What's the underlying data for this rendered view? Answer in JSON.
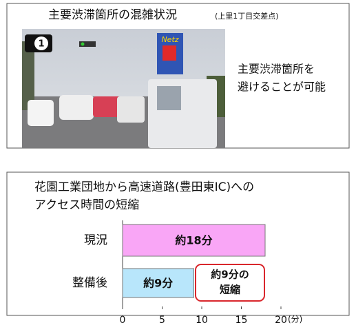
{
  "photo_panel": {
    "title": "主要渋滞箇所の混雑状況",
    "subtitle": "(上里1丁目交差点)",
    "badge": "1",
    "sign": "Netz",
    "note_lines": [
      "主要渋滞箇所を",
      "避けることが可能"
    ]
  },
  "chart_data": {
    "type": "bar",
    "orientation": "horizontal",
    "title_lines": [
      "花園工業団地から高速道路(豊田東IC)への",
      "アクセス時間の短縮"
    ],
    "categories": [
      "現況",
      "整備後"
    ],
    "values": [
      18,
      9
    ],
    "value_labels": [
      "約18分",
      "約9分"
    ],
    "colors": [
      "#f9a6f6",
      "#b8e6fb"
    ],
    "xlim": [
      0,
      20
    ],
    "xticks": [
      0,
      5,
      10,
      15,
      20
    ],
    "x_unit": "(分)",
    "annotation_lines": [
      "約9分の",
      "短縮"
    ],
    "annotation_color": "#d9262c"
  }
}
